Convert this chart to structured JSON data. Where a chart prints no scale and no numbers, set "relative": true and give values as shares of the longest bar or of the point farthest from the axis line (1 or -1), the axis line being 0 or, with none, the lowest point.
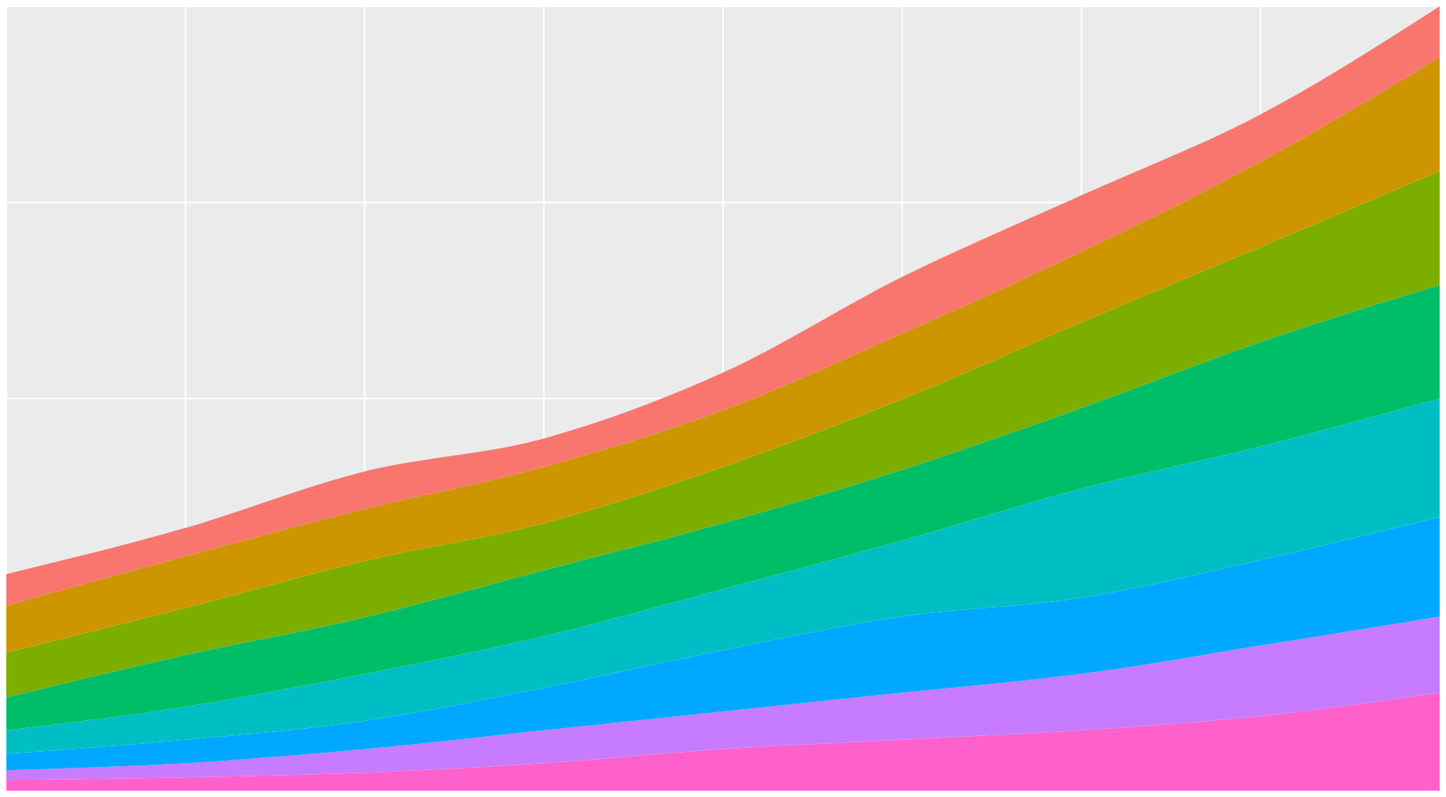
{
  "chart_data": {
    "type": "area",
    "relative": true,
    "stacked": true,
    "grid": true,
    "tick_labels": false,
    "categories": [
      null,
      null,
      null,
      null,
      null,
      null,
      null,
      null,
      null
    ],
    "series": [
      {
        "color": "#ff61cc",
        "values": [
          0.014,
          0.017,
          0.023,
          0.035,
          0.053,
          0.065,
          0.077,
          0.095,
          0.125
        ]
      },
      {
        "color": "#c77cff",
        "values": [
          0.012,
          0.018,
          0.03,
          0.042,
          0.048,
          0.06,
          0.072,
          0.09,
          0.097
        ]
      },
      {
        "color": "#00a9ff",
        "values": [
          0.021,
          0.03,
          0.036,
          0.054,
          0.078,
          0.097,
          0.097,
          0.109,
          0.127
        ]
      },
      {
        "color": "#00bfc4",
        "values": [
          0.03,
          0.042,
          0.06,
          0.066,
          0.078,
          0.097,
          0.139,
          0.145,
          0.151
        ]
      },
      {
        "color": "#00be67",
        "values": [
          0.042,
          0.066,
          0.072,
          0.084,
          0.084,
          0.09,
          0.103,
          0.133,
          0.145
        ]
      },
      {
        "color": "#7cae00",
        "values": [
          0.057,
          0.06,
          0.072,
          0.06,
          0.072,
          0.09,
          0.109,
          0.121,
          0.145
        ]
      },
      {
        "color": "#cd9600",
        "values": [
          0.06,
          0.066,
          0.066,
          0.072,
          0.072,
          0.084,
          0.09,
          0.109,
          0.145
        ]
      },
      {
        "color": "#f8766d",
        "values": [
          0.04,
          0.036,
          0.048,
          0.036,
          0.048,
          0.072,
          0.072,
          0.06,
          0.065
        ]
      }
    ]
  }
}
